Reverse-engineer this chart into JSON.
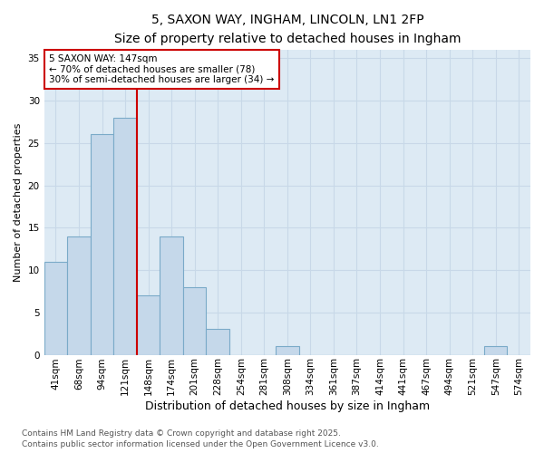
{
  "title1": "5, SAXON WAY, INGHAM, LINCOLN, LN1 2FP",
  "title2": "Size of property relative to detached houses in Ingham",
  "xlabel": "Distribution of detached houses by size in Ingham",
  "ylabel": "Number of detached properties",
  "categories": [
    "41sqm",
    "68sqm",
    "94sqm",
    "121sqm",
    "148sqm",
    "174sqm",
    "201sqm",
    "228sqm",
    "254sqm",
    "281sqm",
    "308sqm",
    "334sqm",
    "361sqm",
    "387sqm",
    "414sqm",
    "441sqm",
    "467sqm",
    "494sqm",
    "521sqm",
    "547sqm",
    "574sqm"
  ],
  "values": [
    11,
    14,
    26,
    28,
    7,
    14,
    8,
    3,
    0,
    0,
    1,
    0,
    0,
    0,
    0,
    0,
    0,
    0,
    0,
    1,
    0
  ],
  "bar_color": "#c5d8ea",
  "bar_edge_color": "#7aaac8",
  "vline_x_index": 4,
  "vline_color": "#cc0000",
  "annotation_line1": "5 SAXON WAY: 147sqm",
  "annotation_line2": "← 70% of detached houses are smaller (78)",
  "annotation_line3": "30% of semi-detached houses are larger (34) →",
  "annotation_box_color": "#ffffff",
  "annotation_box_edge": "#cc0000",
  "ylim": [
    0,
    36
  ],
  "yticks": [
    0,
    5,
    10,
    15,
    20,
    25,
    30,
    35
  ],
  "grid_color": "#c8d8e8",
  "plot_bg_color": "#ddeaf4",
  "fig_bg_color": "#ffffff",
  "title1_fontsize": 10,
  "title2_fontsize": 9,
  "xlabel_fontsize": 9,
  "ylabel_fontsize": 8,
  "tick_fontsize": 7.5,
  "annotation_fontsize": 7.5,
  "footer1": "Contains HM Land Registry data © Crown copyright and database right 2025.",
  "footer2": "Contains public sector information licensed under the Open Government Licence v3.0.",
  "footer_fontsize": 6.5
}
